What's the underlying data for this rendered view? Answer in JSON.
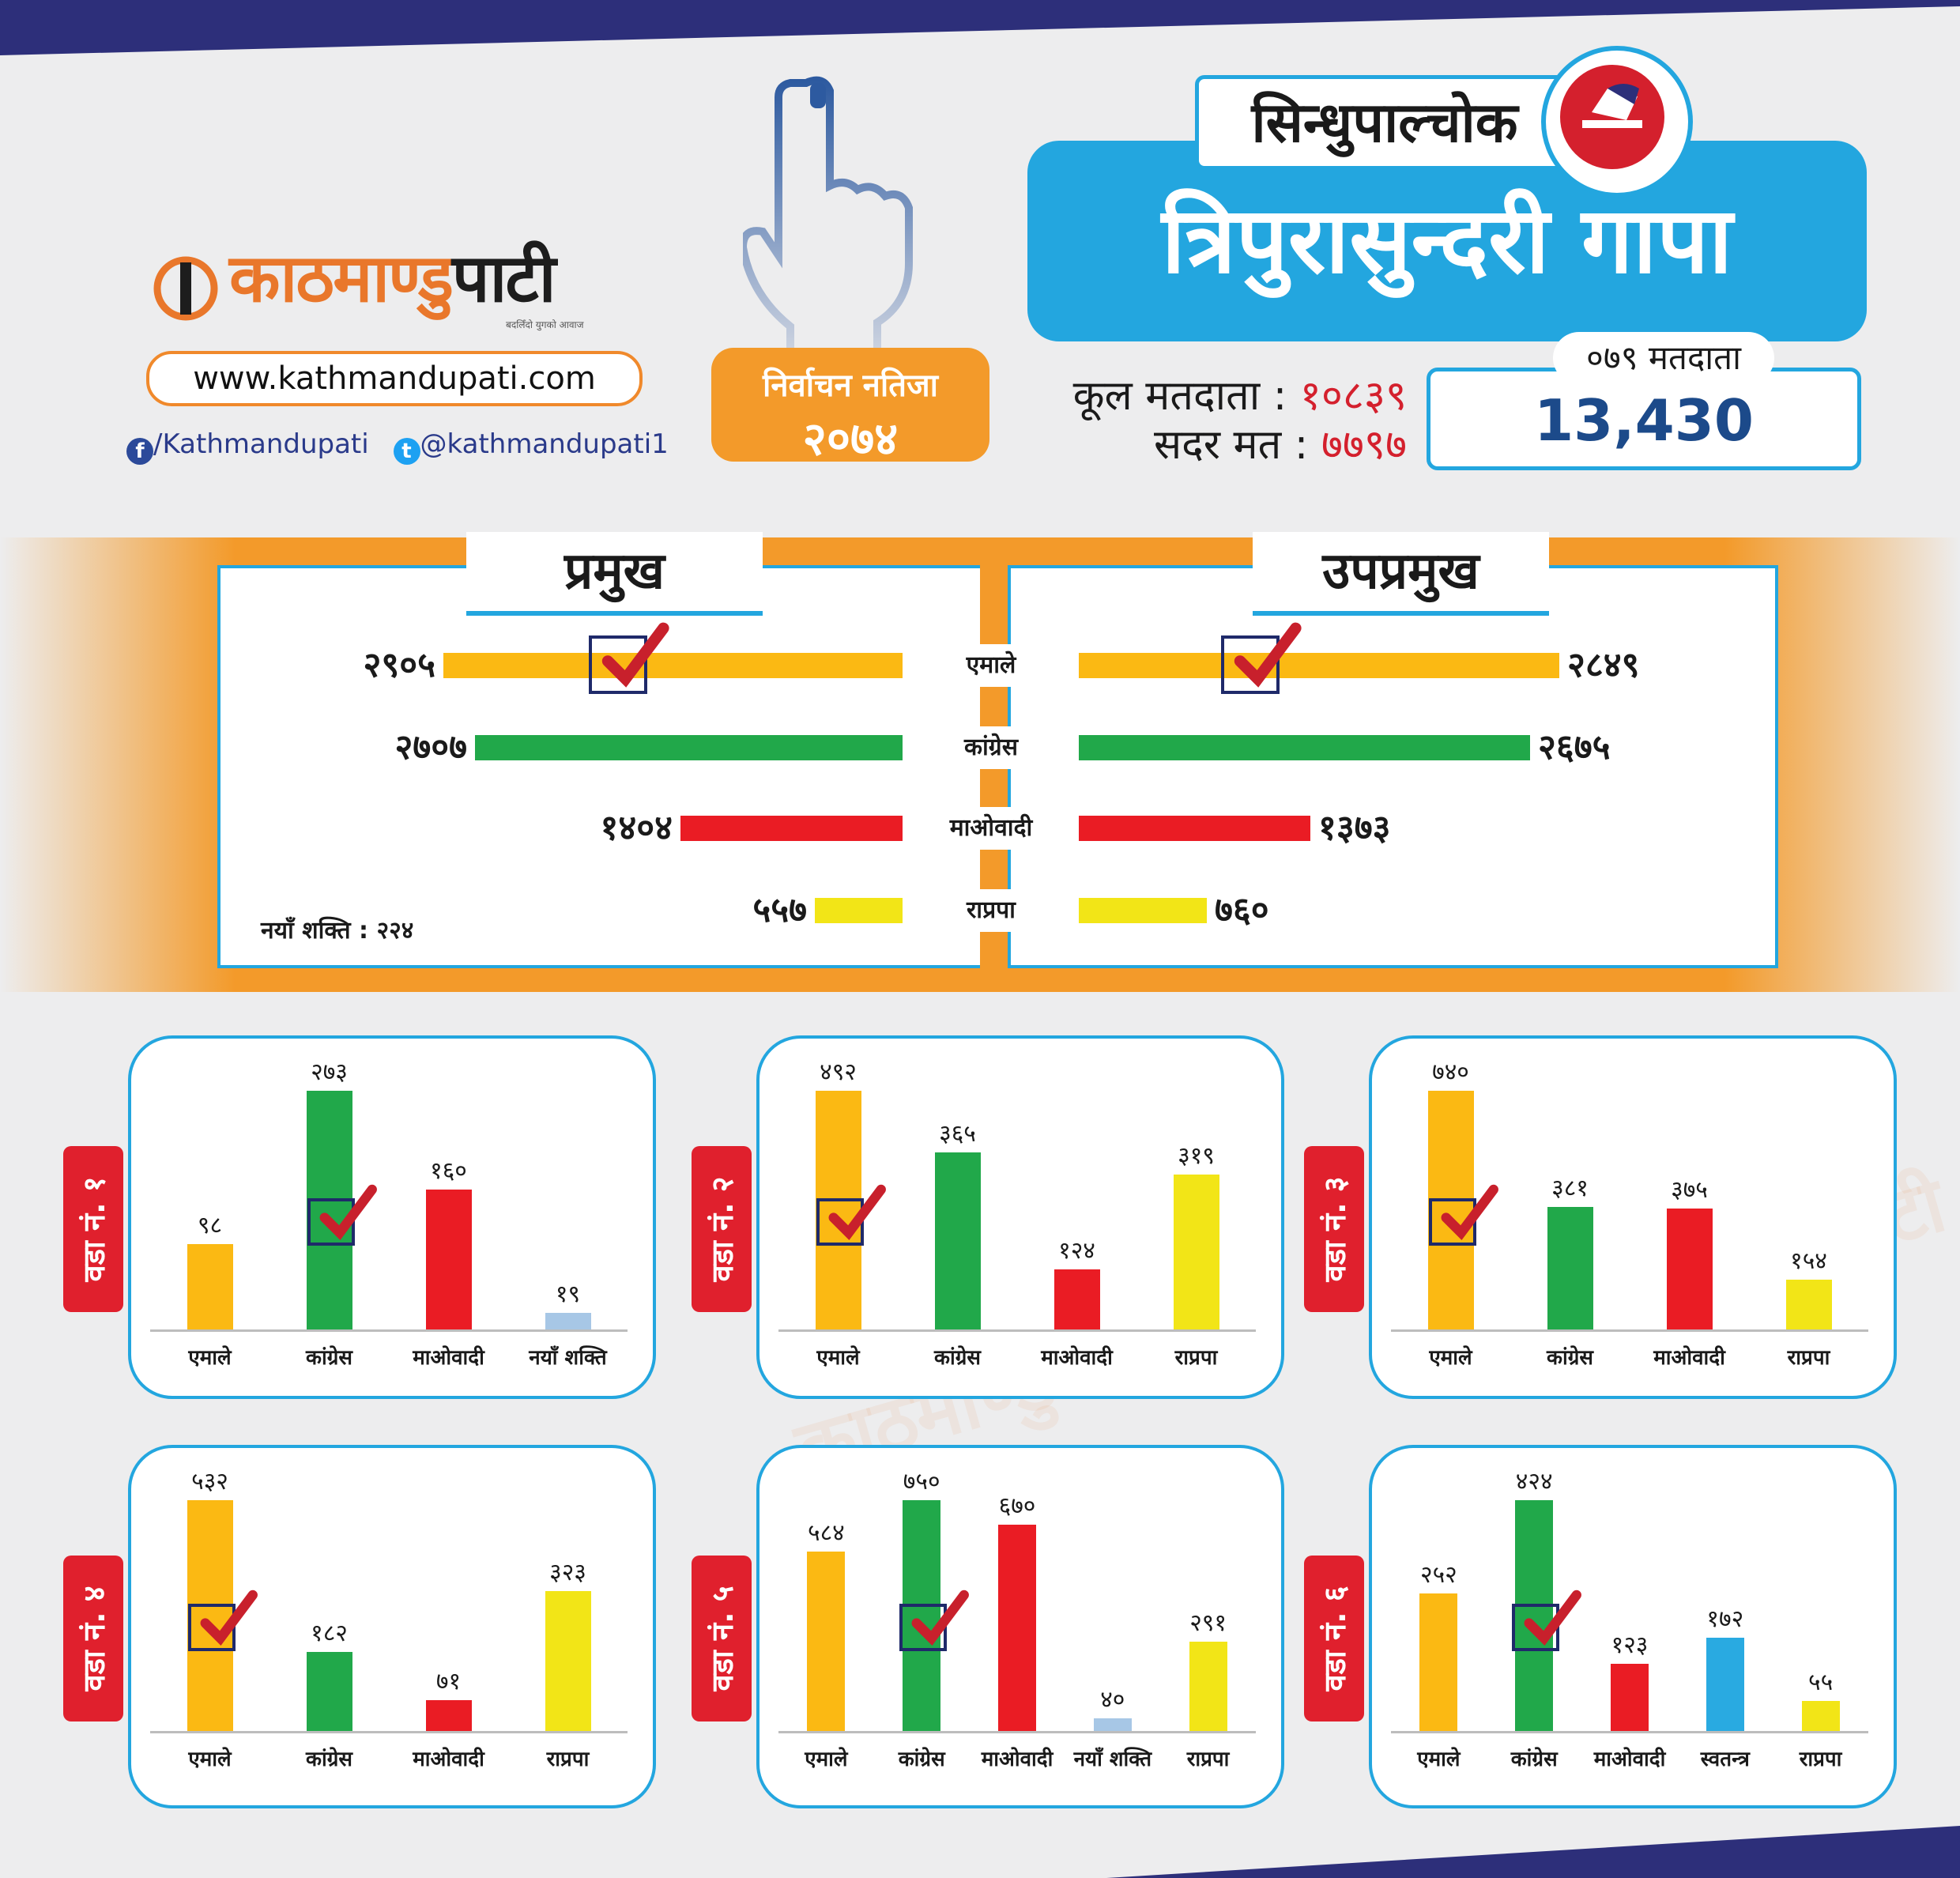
{
  "colors": {
    "uml": "#fbb913",
    "congress": "#21a84a",
    "maoist": "#ea1c24",
    "rpp": "#f2e517",
    "naya": "#a7c7e6",
    "swatantra": "#29aae1",
    "accent": "#23a6df",
    "orange": "#f39a2a",
    "navy": "#2d2f7a"
  },
  "branding": {
    "logo_a": "काठमाण्डु",
    "logo_b": "पाटी",
    "tagline": "बदलिँदो युगको आवाज",
    "url": "www.kathmandupati.com",
    "facebook": "/Kathmandupati",
    "twitter": "@kathmandupati1"
  },
  "election": {
    "label": "निर्वाचन नतिजा",
    "year": "२०७४"
  },
  "district": "सिन्धुपाल्चोक",
  "municipality": "त्रिपुरासुन्दरी गापा",
  "stats": {
    "total_label": "कूल मतदाता :",
    "total_value": "१०८३९",
    "valid_label": "सदर मत :",
    "valid_value": "७७९७"
  },
  "voters_079": {
    "label": "०७९ मतदाता",
    "value": "13,430"
  },
  "mayor": {
    "title": "प्रमुख",
    "parties": [
      {
        "party": "एमाले",
        "label": "२९०५",
        "value": 2905,
        "color": "uml",
        "winner": true
      },
      {
        "party": "कांग्रेस",
        "label": "२७०७",
        "value": 2707,
        "color": "congress",
        "winner": false
      },
      {
        "party": "माओवादी",
        "label": "१४०४",
        "value": 1404,
        "color": "maoist",
        "winner": false
      },
      {
        "party": "राप्रपा",
        "label": "५५७",
        "value": 557,
        "color": "rpp",
        "winner": false
      }
    ],
    "note": "नयाँ शक्ति : २२४"
  },
  "deputy": {
    "title": "उपप्रमुख",
    "parties": [
      {
        "party": "एमाले",
        "label": "२८४९",
        "value": 2849,
        "color": "uml",
        "winner": true
      },
      {
        "party": "कांग्रेस",
        "label": "२६७५",
        "value": 2675,
        "color": "congress",
        "winner": false
      },
      {
        "party": "माओवादी",
        "label": "१३७३",
        "value": 1373,
        "color": "maoist",
        "winner": false
      },
      {
        "party": "राप्रपा",
        "label": "७६०",
        "value": 760,
        "color": "rpp",
        "winner": false
      }
    ]
  },
  "chart_data": [
    {
      "type": "bar",
      "title": "वडा नं. १",
      "categories": [
        "एमाले",
        "कांग्रेस",
        "माओवादी",
        "नयाँ शक्ति"
      ],
      "labels": [
        "९८",
        "२७३",
        "१६०",
        "१९"
      ],
      "values": [
        98,
        273,
        160,
        19
      ],
      "colors": [
        "uml",
        "congress",
        "maoist",
        "naya"
      ],
      "winner": 1
    },
    {
      "type": "bar",
      "title": "वडा नं. २",
      "categories": [
        "एमाले",
        "कांग्रेस",
        "माओवादी",
        "राप्रपा"
      ],
      "labels": [
        "४९२",
        "३६५",
        "१२४",
        "३१९"
      ],
      "values": [
        492,
        365,
        124,
        319
      ],
      "colors": [
        "uml",
        "congress",
        "maoist",
        "rpp"
      ],
      "winner": 0
    },
    {
      "type": "bar",
      "title": "वडा नं. ३",
      "categories": [
        "एमाले",
        "कांग्रेस",
        "माओवादी",
        "राप्रपा"
      ],
      "labels": [
        "७४०",
        "३८१",
        "३७५",
        "१५४"
      ],
      "values": [
        740,
        381,
        375,
        154
      ],
      "colors": [
        "uml",
        "congress",
        "maoist",
        "rpp"
      ],
      "winner": 0
    },
    {
      "type": "bar",
      "title": "वडा नं. ४",
      "categories": [
        "एमाले",
        "कांग्रेस",
        "माओवादी",
        "राप्रपा"
      ],
      "labels": [
        "५३२",
        "१८२",
        "७१",
        "३२३"
      ],
      "values": [
        532,
        182,
        71,
        323
      ],
      "colors": [
        "uml",
        "congress",
        "maoist",
        "rpp"
      ],
      "winner": 0
    },
    {
      "type": "bar",
      "title": "वडा नं. ५",
      "categories": [
        "एमाले",
        "कांग्रेस",
        "माओवादी",
        "नयाँ शक्ति",
        "राप्रपा"
      ],
      "labels": [
        "५८४",
        "७५०",
        "६७०",
        "४०",
        "२९१"
      ],
      "values": [
        584,
        750,
        670,
        40,
        291
      ],
      "colors": [
        "uml",
        "congress",
        "maoist",
        "naya",
        "rpp"
      ],
      "winner": 1
    },
    {
      "type": "bar",
      "title": "वडा नं. ६",
      "categories": [
        "एमाले",
        "कांग्रेस",
        "माओवादी",
        "स्वतन्त्र",
        "राप्रपा"
      ],
      "labels": [
        "२५२",
        "४२४",
        "१२३",
        "१७२",
        "५५"
      ],
      "values": [
        252,
        424,
        123,
        172,
        55
      ],
      "colors": [
        "uml",
        "congress",
        "maoist",
        "swatantra",
        "rpp"
      ],
      "winner": 1
    }
  ]
}
